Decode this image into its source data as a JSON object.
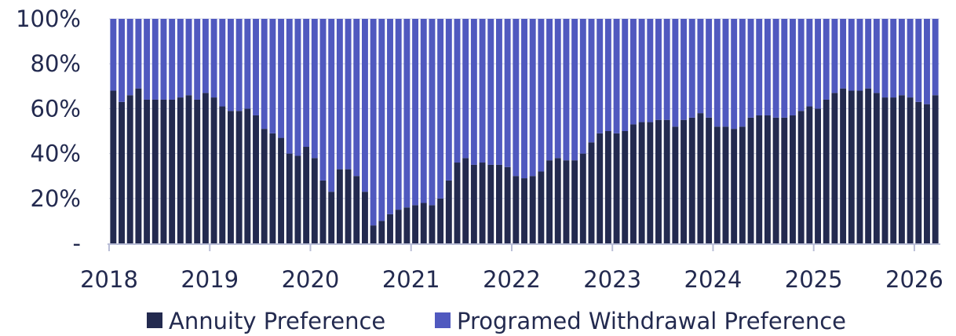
{
  "chart_data": {
    "type": "bar",
    "stacked": true,
    "percent_stacked": true,
    "x_ticks": [
      "2018",
      "2019",
      "2020",
      "2021",
      "2022",
      "2023",
      "2024",
      "2025",
      "2026"
    ],
    "y_ticks": [
      "-",
      "20%",
      "40%",
      "60%",
      "80%",
      "100%"
    ],
    "ylim": [
      0,
      100
    ],
    "grid": true,
    "legend_position": "bottom",
    "series": [
      {
        "name": "Annuity Preference",
        "color": "#232a4f",
        "values": [
          68,
          63,
          66,
          69,
          64,
          64,
          64,
          64,
          65,
          66,
          64,
          67,
          65,
          61,
          59,
          59,
          60,
          57,
          51,
          49,
          47,
          40,
          39,
          43,
          38,
          28,
          23,
          33,
          33,
          30,
          23,
          8,
          10,
          13,
          15,
          16,
          17,
          18,
          17,
          20,
          28,
          36,
          38,
          35,
          36,
          35,
          35,
          34,
          30,
          29,
          30,
          32,
          37,
          38,
          37,
          37,
          40,
          45,
          49,
          50,
          49,
          50,
          53,
          54,
          54,
          55,
          55,
          52,
          55,
          56,
          58,
          56,
          52,
          52,
          51,
          52,
          56,
          57,
          57,
          56,
          56,
          57,
          59,
          61,
          60,
          64,
          67,
          69,
          68,
          68,
          69,
          67,
          65,
          65,
          66,
          65,
          63,
          62,
          66
        ]
      },
      {
        "name": "Programed Withdrawal Preference",
        "color": "#5059bf",
        "values": [
          32,
          37,
          34,
          31,
          36,
          36,
          36,
          36,
          35,
          34,
          36,
          33,
          35,
          39,
          41,
          41,
          40,
          43,
          49,
          51,
          53,
          60,
          61,
          57,
          62,
          72,
          77,
          67,
          67,
          70,
          77,
          92,
          90,
          87,
          85,
          84,
          83,
          82,
          83,
          80,
          72,
          64,
          62,
          65,
          64,
          65,
          65,
          66,
          70,
          71,
          70,
          68,
          63,
          62,
          63,
          63,
          60,
          55,
          51,
          50,
          51,
          50,
          47,
          46,
          46,
          45,
          45,
          48,
          45,
          44,
          42,
          44,
          48,
          48,
          49,
          48,
          44,
          43,
          43,
          44,
          44,
          43,
          41,
          39,
          40,
          36,
          33,
          31,
          32,
          32,
          31,
          33,
          35,
          35,
          34,
          35,
          37,
          38,
          34
        ]
      }
    ]
  }
}
